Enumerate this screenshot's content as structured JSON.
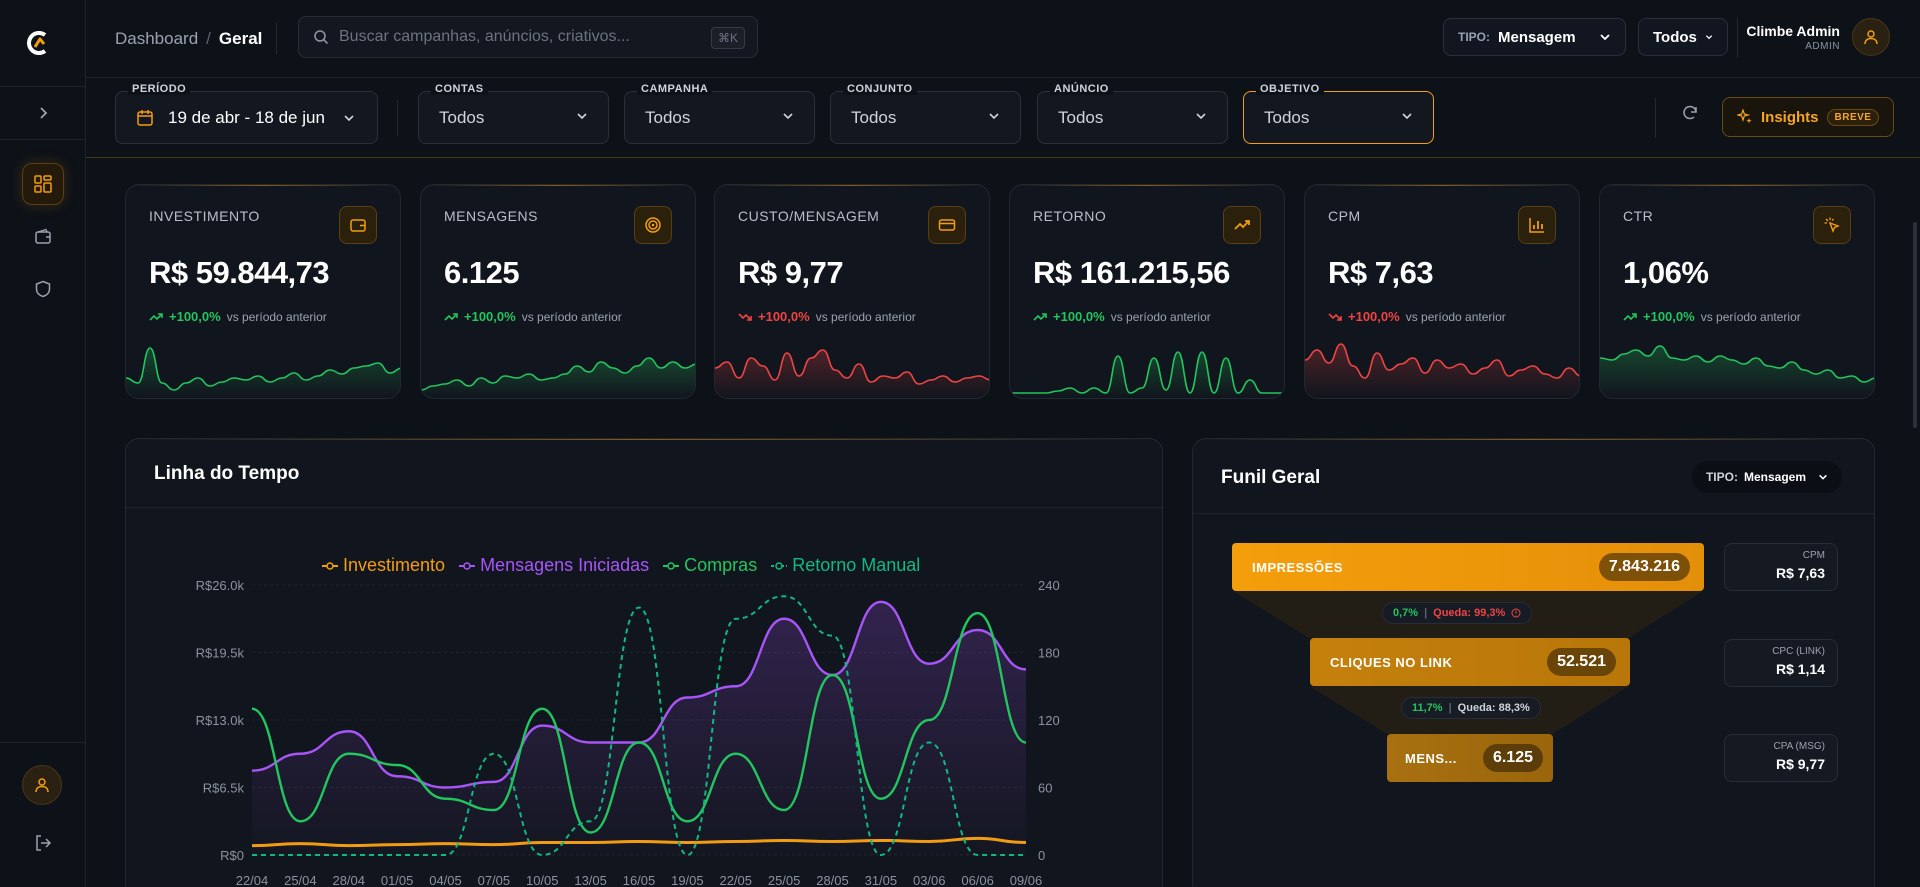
{
  "header": {
    "breadcrumb_root": "Dashboard",
    "breadcrumb_sep": "/",
    "breadcrumb_current": "Geral",
    "search_placeholder": "Buscar campanhas, anúncios, criativos...",
    "search_shortcut": "⌘K",
    "tipo_label": "TIPO:",
    "tipo_value": "Mensagem",
    "scope_value": "Todos",
    "user_name": "Climbe Admin",
    "user_role": "ADMIN"
  },
  "filters": {
    "period_label": "PERÍODO",
    "period_value": "19 de abr - 18 de jun",
    "items": [
      {
        "label": "CONTAS",
        "value": "Todos"
      },
      {
        "label": "CAMPANHA",
        "value": "Todos"
      },
      {
        "label": "CONJUNTO",
        "value": "Todos"
      },
      {
        "label": "ANÚNCIO",
        "value": "Todos"
      },
      {
        "label": "OBJETIVO",
        "value": "Todos"
      }
    ],
    "insights_label": "Insights",
    "insights_badge": "BREVE"
  },
  "kpis": [
    {
      "label": "INVESTIMENTO",
      "value": "R$ 59.844,73",
      "delta": "+100,0%",
      "vs": "vs período anterior",
      "trend": "up",
      "icon": "wallet-icon"
    },
    {
      "label": "MENSAGENS",
      "value": "6.125",
      "delta": "+100,0%",
      "vs": "vs período anterior",
      "trend": "up",
      "icon": "target-icon"
    },
    {
      "label": "CUSTO/MENSAGEM",
      "value": "R$ 9,77",
      "delta": "+100,0%",
      "vs": "vs período anterior",
      "trend": "down",
      "icon": "card-icon"
    },
    {
      "label": "RETORNO",
      "value": "R$ 161.215,56",
      "delta": "+100,0%",
      "vs": "vs período anterior",
      "trend": "up",
      "icon": "trend-up-icon"
    },
    {
      "label": "CPM",
      "value": "R$ 7,63",
      "delta": "+100,0%",
      "vs": "vs período anterior",
      "trend": "down",
      "icon": "bar-chart-icon"
    },
    {
      "label": "CTR",
      "value": "1,06%",
      "delta": "+100,0%",
      "vs": "vs período anterior",
      "trend": "up",
      "icon": "click-icon"
    }
  ],
  "colors": {
    "accent": "#f59e0b",
    "up": "#22c55e",
    "down": "#ef4444",
    "purple": "#a855f7",
    "teal": "#10b981"
  },
  "timeline": {
    "title": "Linha do Tempo",
    "legend": [
      "Investimento",
      "Mensagens Iniciadas",
      "Compras",
      "Retorno Manual"
    ]
  },
  "chart_data": {
    "type": "line",
    "x": [
      "22/04",
      "25/04",
      "28/04",
      "01/05",
      "04/05",
      "07/05",
      "10/05",
      "13/05",
      "16/05",
      "19/05",
      "22/05",
      "25/05",
      "28/05",
      "31/05",
      "03/06",
      "06/06",
      "09/06"
    ],
    "left_axis_ticks": [
      "R$0",
      "R$6.5k",
      "R$13.0k",
      "R$19.5k",
      "R$26.0k"
    ],
    "right_axis_ticks": [
      "0",
      "60",
      "120",
      "180",
      "240"
    ],
    "left_ylim": [
      0,
      26000
    ],
    "right_ylim": [
      0,
      240
    ],
    "series": [
      {
        "name": "Investimento",
        "axis": "left",
        "color": "#f59e0b",
        "values": [
          900,
          1100,
          900,
          1000,
          1100,
          1000,
          1200,
          1200,
          1300,
          1200,
          1300,
          1400,
          1300,
          1400,
          1300,
          1600,
          1200
        ]
      },
      {
        "name": "Mensagens Iniciadas",
        "axis": "right",
        "color": "#a855f7",
        "values": [
          75,
          90,
          110,
          70,
          60,
          65,
          115,
          100,
          100,
          140,
          150,
          210,
          160,
          225,
          170,
          200,
          165
        ]
      },
      {
        "name": "Compras",
        "axis": "right",
        "color": "#22c55e",
        "values": [
          130,
          30,
          90,
          80,
          50,
          40,
          130,
          20,
          100,
          30,
          90,
          40,
          160,
          50,
          120,
          215,
          100
        ]
      },
      {
        "name": "Retorno Manual",
        "axis": "right",
        "color": "#10b981",
        "values": [
          0,
          0,
          0,
          0,
          0,
          90,
          0,
          30,
          220,
          0,
          210,
          230,
          195,
          0,
          100,
          0,
          0
        ]
      }
    ]
  },
  "funnel": {
    "title": "Funil Geral",
    "tipo_label": "TIPO:",
    "tipo_value": "Mensagem",
    "stages": [
      {
        "label": "IMPRESSÕES",
        "value": "7.843.216"
      },
      {
        "label": "CLIQUES NO LINK",
        "value": "52.521"
      },
      {
        "label": "MENS...",
        "value": "6.125"
      }
    ],
    "drops": [
      {
        "rate": "0,7%",
        "sep": "|",
        "loss": "Queda: 99,3%"
      },
      {
        "rate": "11,7%",
        "sep": "|",
        "loss": "Queda: 88,3%"
      }
    ],
    "side": [
      {
        "label": "CPM",
        "value": "R$ 7,63"
      },
      {
        "label": "CPC (LINK)",
        "value": "R$ 1,14"
      },
      {
        "label": "CPA (MSG)",
        "value": "R$ 9,77"
      }
    ]
  }
}
